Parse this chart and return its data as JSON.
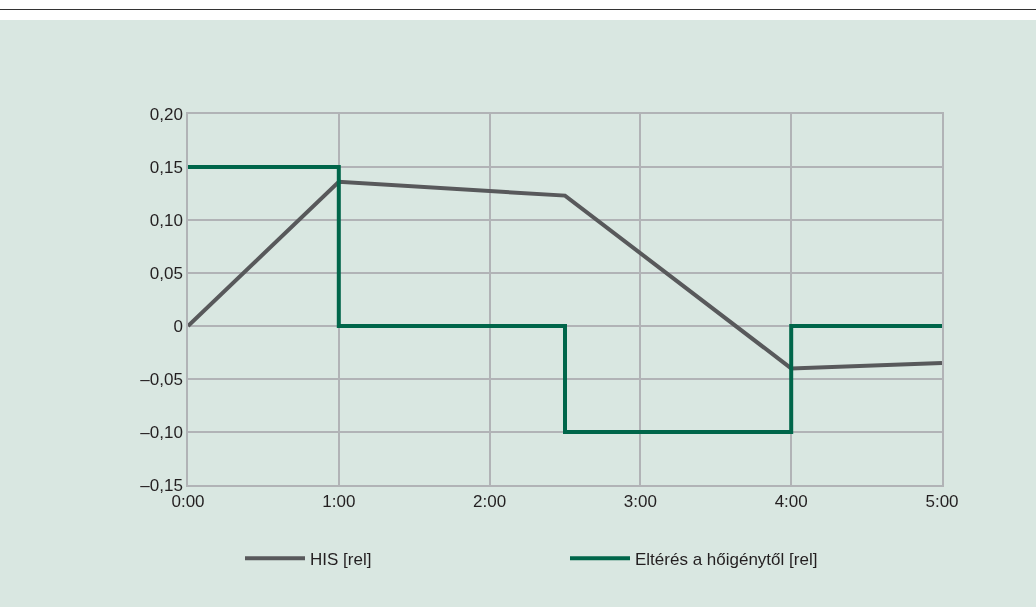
{
  "chart_data": {
    "type": "line",
    "series": [
      {
        "name": "HIS [rel]",
        "color": "#58595b",
        "x": [
          0,
          1,
          2.5,
          4,
          5
        ],
        "values": [
          0,
          0.136,
          0.123,
          -0.04,
          -0.035
        ]
      },
      {
        "name": "Eltérés a hőigénytől [rel]",
        "color": "#00664a",
        "type": "step",
        "x": [
          0,
          1,
          2.5,
          4,
          5
        ],
        "values": [
          0.15,
          0,
          -0.1,
          0,
          0
        ]
      }
    ],
    "xlim": [
      0,
      5
    ],
    "xticks": [
      {
        "value": 0,
        "label": "0:00"
      },
      {
        "value": 1,
        "label": "1:00"
      },
      {
        "value": 2,
        "label": "2:00"
      },
      {
        "value": 3,
        "label": "3:00"
      },
      {
        "value": 4,
        "label": "4:00"
      },
      {
        "value": 5,
        "label": "5:00"
      }
    ],
    "ylim": [
      -0.15,
      0.2
    ],
    "yticks": [
      {
        "value": -0.15,
        "label": "–0,15"
      },
      {
        "value": -0.1,
        "label": "–0,10"
      },
      {
        "value": -0.05,
        "label": "–0,05"
      },
      {
        "value": 0,
        "label": "0"
      },
      {
        "value": 0.05,
        "label": "0,05"
      },
      {
        "value": 0.1,
        "label": "0,10"
      },
      {
        "value": 0.15,
        "label": "0,15"
      },
      {
        "value": 0.2,
        "label": "0,20"
      }
    ],
    "grid": true,
    "legend": "bottom",
    "marker": "none",
    "line_style": "solid"
  }
}
